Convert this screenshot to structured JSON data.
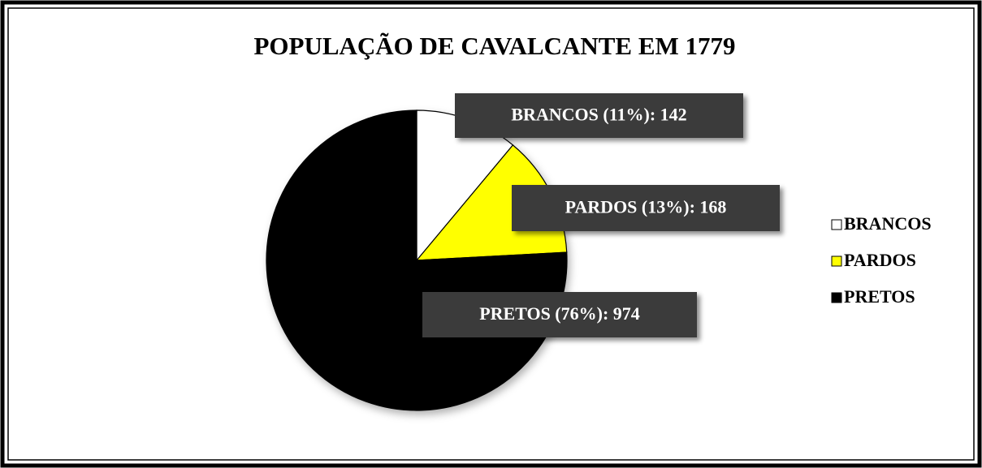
{
  "chart_data": {
    "type": "pie",
    "title": "POPULAÇÃO DE CAVALCANTE EM 1779",
    "categories": [
      "BRANCOS",
      "PARDOS",
      "PRETOS"
    ],
    "values": [
      142,
      168,
      974
    ],
    "value_labels": [
      "BRANCOS (11%): 142",
      "PARDOS (13%): 168",
      "PRETOS (76%): 974"
    ],
    "colors": [
      "#ffffff",
      "#ffff00",
      "#000000"
    ],
    "legend": "right"
  }
}
